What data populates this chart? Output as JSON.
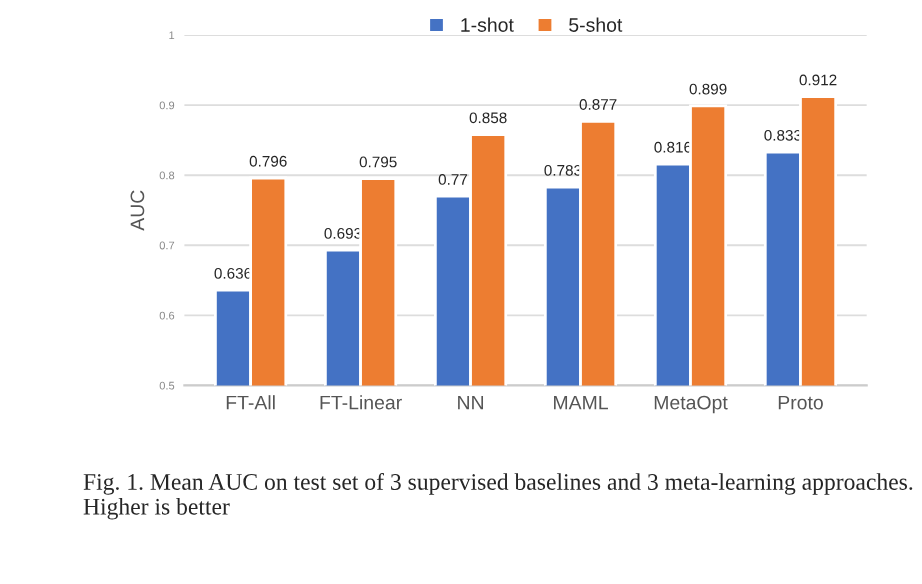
{
  "chart_data": {
    "type": "bar",
    "ylabel": "AUC",
    "categories": [
      "FT-All",
      "FT-Linear",
      "NN",
      "MAML",
      "MetaOpt",
      "Proto"
    ],
    "series": [
      {
        "name": "1-shot",
        "color": "#4472c4",
        "values": [
          0.636,
          0.693,
          0.77,
          0.783,
          0.816,
          0.833
        ]
      },
      {
        "name": "5-shot",
        "color": "#ed7d31",
        "values": [
          0.796,
          0.795,
          0.858,
          0.877,
          0.899,
          0.912
        ]
      }
    ],
    "ylim": [
      0.5,
      1
    ],
    "yticks": [
      0.5,
      0.6,
      0.7,
      0.8,
      0.9,
      1
    ],
    "grid": "y",
    "legend": "top",
    "data_labels": true,
    "annotations": [
      "Fig. 1. Mean AUC on test set of 3 supervised baselines and 3 meta-learning approaches. Higher is better"
    ]
  }
}
